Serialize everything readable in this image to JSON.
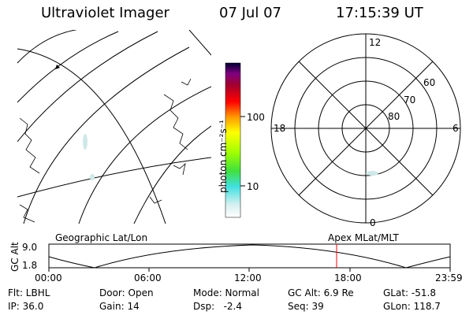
{
  "header": {
    "instrument": "Ultraviolet Imager",
    "date": "07 Jul 07",
    "time": "17:15:39 UT"
  },
  "colorbar": {
    "unit_label": "photon cm⁻²s⁻¹",
    "ticks": [
      "100",
      "10"
    ]
  },
  "polar_plot": {
    "mlt_labels": {
      "top": "12",
      "left": "18",
      "right": "6",
      "bottom": "0"
    },
    "lat_labels": [
      "60",
      "70",
      "80"
    ]
  },
  "timeline": {
    "left_label": "Geographic Lat/Lon",
    "right_label": "Apex MLat/MLT",
    "y_axis_title": "GC Alt",
    "y_ticks": [
      "9.0",
      "1.8"
    ],
    "x_ticks": [
      "00:00",
      "06:00",
      "12:00",
      "18:00",
      "23:59"
    ],
    "marker_color": "#ff0000"
  },
  "status": {
    "row1": [
      {
        "label": "Flt: LBHL"
      },
      {
        "label": "Door: Open"
      },
      {
        "label": "Mode: Normal"
      },
      {
        "label": "GC Alt: 6.9 Re"
      },
      {
        "label": "GLat: -51.8"
      }
    ],
    "row2": [
      {
        "label": "IP: 36.0"
      },
      {
        "label": "Gain: 14"
      },
      {
        "label": "Dsp:   -2.4"
      },
      {
        "label": "Seq: 39"
      },
      {
        "label": "GLon: 118.7"
      }
    ]
  }
}
